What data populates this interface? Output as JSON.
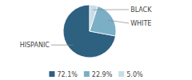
{
  "chart_data": {
    "type": "pie",
    "categories": [
      "HISPANIC",
      "WHITE",
      "BLACK"
    ],
    "values": [
      72.1,
      22.9,
      5.0
    ],
    "value_labels": [
      "72.1%",
      "22.9%",
      "5.0%"
    ],
    "colors": [
      "#2e6080",
      "#7aafc5",
      "#c8dde8"
    ],
    "legend": "bottom"
  }
}
